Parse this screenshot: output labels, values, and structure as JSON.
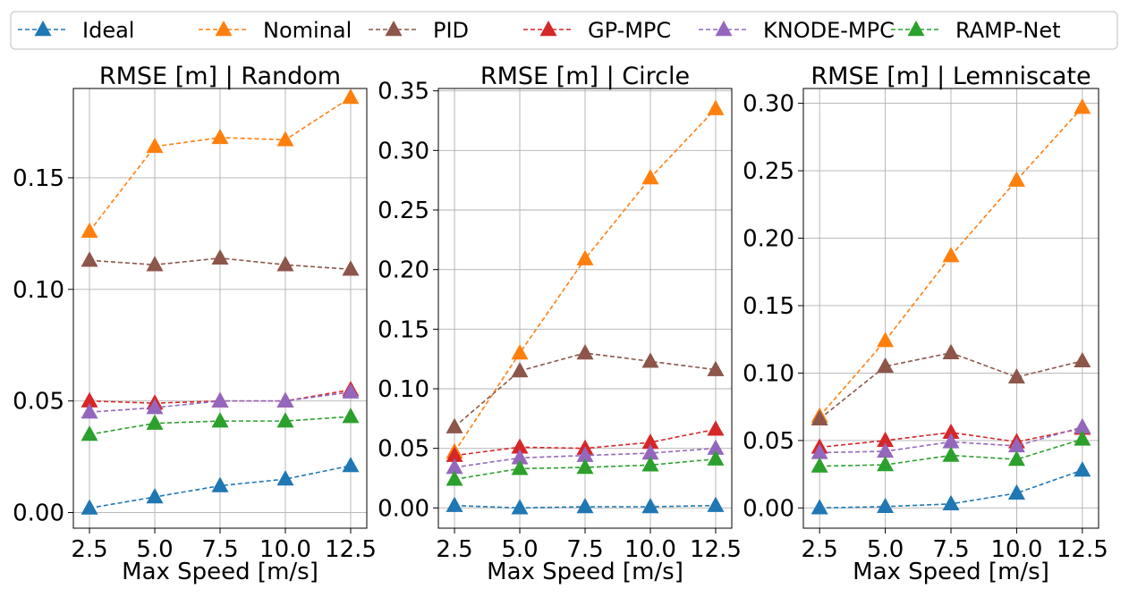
{
  "chart_data": {
    "type": "line",
    "legend": {
      "placement": "top",
      "entries": [
        "Ideal",
        "Nominal",
        "PID",
        "GP-MPC",
        "KNODE-MPC",
        "RAMP-Net"
      ]
    },
    "colors": {
      "Ideal": "#1f77b4",
      "Nominal": "#ff7f0e",
      "PID": "#8c564b",
      "GP-MPC": "#d62728",
      "KNODE-MPC": "#9467bd",
      "RAMP-Net": "#2ca02c"
    },
    "x": [
      2.5,
      5.0,
      7.5,
      10.0,
      12.5
    ],
    "xtick_labels": [
      "2.5",
      "5.0",
      "7.5",
      "10.0",
      "12.5"
    ],
    "xlabel": "Max Speed [m/s]",
    "panels": [
      {
        "title": "RMSE [m] | Random",
        "ylim": [
          -0.007,
          0.19
        ],
        "yticks": [
          0.0,
          0.05,
          0.1,
          0.15
        ],
        "ytick_labels": [
          "0.00",
          "0.05",
          "0.10",
          "0.15"
        ],
        "series": [
          {
            "name": "Ideal",
            "values": [
              0.002,
              0.007,
              0.012,
              0.015,
              0.021
            ]
          },
          {
            "name": "Nominal",
            "values": [
              0.126,
              0.164,
              0.168,
              0.167,
              0.186
            ]
          },
          {
            "name": "PID",
            "values": [
              0.113,
              0.111,
              0.114,
              0.111,
              0.109
            ]
          },
          {
            "name": "GP-MPC",
            "values": [
              0.05,
              0.049,
              0.05,
              0.05,
              0.055
            ]
          },
          {
            "name": "KNODE-MPC",
            "values": [
              0.045,
              0.047,
              0.05,
              0.05,
              0.054
            ]
          },
          {
            "name": "RAMP-Net",
            "values": [
              0.035,
              0.04,
              0.041,
              0.041,
              0.043
            ]
          }
        ]
      },
      {
        "title": "RMSE [m] | Circle",
        "ylim": [
          -0.017,
          0.352
        ],
        "yticks": [
          0.0,
          0.05,
          0.1,
          0.15,
          0.2,
          0.25,
          0.3,
          0.35
        ],
        "ytick_labels": [
          "0.00",
          "0.05",
          "0.10",
          "0.15",
          "0.20",
          "0.25",
          "0.30",
          "0.35"
        ],
        "series": [
          {
            "name": "Ideal",
            "values": [
              0.002,
              0.0,
              0.001,
              0.001,
              0.002
            ]
          },
          {
            "name": "Nominal",
            "values": [
              0.047,
              0.13,
              0.209,
              0.277,
              0.335
            ]
          },
          {
            "name": "PID",
            "values": [
              0.068,
              0.115,
              0.13,
              0.123,
              0.116
            ]
          },
          {
            "name": "GP-MPC",
            "values": [
              0.044,
              0.051,
              0.05,
              0.055,
              0.066
            ]
          },
          {
            "name": "KNODE-MPC",
            "values": [
              0.034,
              0.042,
              0.044,
              0.046,
              0.05
            ]
          },
          {
            "name": "RAMP-Net",
            "values": [
              0.024,
              0.033,
              0.034,
              0.036,
              0.041
            ]
          }
        ]
      },
      {
        "title": "RMSE [m] | Lemniscate",
        "ylim": [
          -0.015,
          0.311
        ],
        "yticks": [
          0.0,
          0.05,
          0.1,
          0.15,
          0.2,
          0.25,
          0.3
        ],
        "ytick_labels": [
          "0.00",
          "0.05",
          "0.10",
          "0.15",
          "0.20",
          "0.25",
          "0.30"
        ],
        "series": [
          {
            "name": "Ideal",
            "values": [
              0.0,
              0.001,
              0.003,
              0.011,
              0.028
            ]
          },
          {
            "name": "Nominal",
            "values": [
              0.068,
              0.124,
              0.187,
              0.243,
              0.297
            ]
          },
          {
            "name": "PID",
            "values": [
              0.066,
              0.105,
              0.115,
              0.097,
              0.109
            ]
          },
          {
            "name": "GP-MPC",
            "values": [
              0.045,
              0.05,
              0.056,
              0.049,
              0.059
            ]
          },
          {
            "name": "KNODE-MPC",
            "values": [
              0.041,
              0.042,
              0.049,
              0.046,
              0.06
            ]
          },
          {
            "name": "RAMP-Net",
            "values": [
              0.031,
              0.032,
              0.039,
              0.036,
              0.051
            ]
          }
        ]
      }
    ]
  }
}
